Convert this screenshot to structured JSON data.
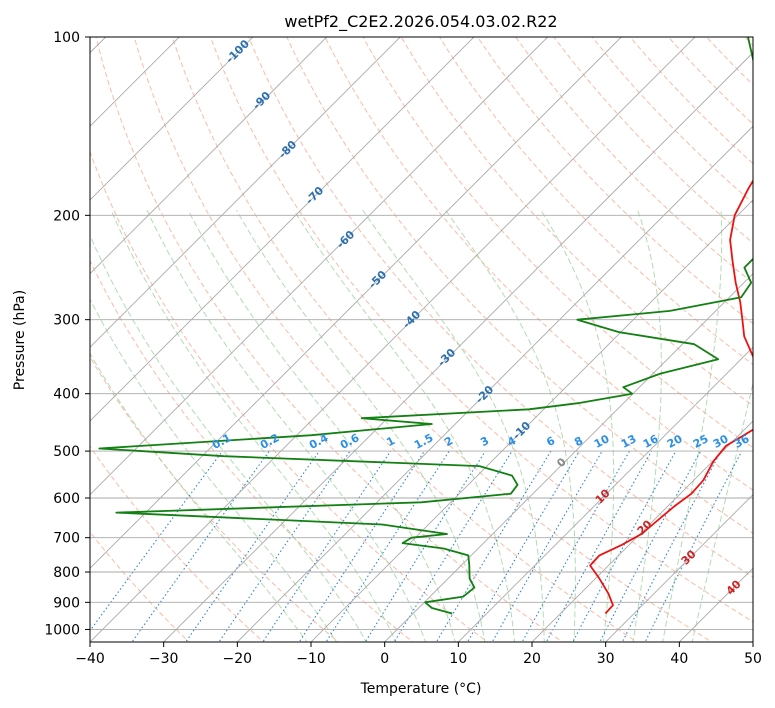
{
  "chart_data": {
    "type": "line",
    "title": "wetPf2_C2E2.2026.054.03.02.R22",
    "xlabel": "Temperature (°C)",
    "ylabel": "Pressure (hPa)",
    "xlim": [
      -40,
      50
    ],
    "ylim": [
      1050,
      100
    ],
    "y_scale": "log",
    "grid": true,
    "x_ticks": [
      -40,
      -30,
      -20,
      -10,
      0,
      10,
      20,
      30,
      40,
      50
    ],
    "x_tick_labels": [
      "−40",
      "−30",
      "−20",
      "−10",
      "0",
      "10",
      "20",
      "30",
      "40",
      "50"
    ],
    "y_ticks": [
      100,
      200,
      300,
      400,
      500,
      600,
      700,
      800,
      900,
      1000
    ],
    "y_tick_labels": [
      "100",
      "200",
      "300",
      "400",
      "500",
      "600",
      "700",
      "800",
      "900",
      "1000"
    ],
    "colors": {
      "temperature": "#ee1111",
      "dewpoint": "#128012",
      "isotherm": "#aaaaaa",
      "dry_adiabat": "#f5a58a",
      "moist_adiabat": "#9fd39f",
      "mixing_ratio": "#2f86d6",
      "isotherm_label": "#2a6fb0",
      "mixing_label": "#2b8fe6",
      "moist_label": "#cc2222"
    },
    "series": [
      {
        "key": "temperature",
        "pressure": [
          940,
          910,
          870,
          820,
          780,
          750,
          720,
          690,
          660,
          620,
          590,
          560,
          520,
          490,
          470,
          440,
          420,
          400,
          380,
          350,
          320,
          300,
          280,
          260,
          240,
          220,
          200,
          180,
          165,
          150,
          140,
          130,
          120,
          115,
          110,
          105,
          100
        ],
        "temp": [
          26.1,
          26.0,
          23.8,
          20.5,
          17.5,
          17.4,
          19.0,
          20.2,
          20.5,
          20.9,
          21.5,
          21.3,
          20.1,
          19.7,
          20.7,
          22.2,
          22.0,
          20.1,
          17.0,
          11.8,
          7.3,
          4.8,
          2.1,
          -1.1,
          -4.3,
          -7.7,
          -10.4,
          -12.2,
          -13.4,
          -13.6,
          -14.6,
          -16.2,
          -17.3,
          -17.3,
          -17.0,
          -16.5,
          -16.0
        ]
      },
      {
        "key": "dewpoint",
        "pressure": [
          940,
          920,
          900,
          880,
          850,
          820,
          780,
          750,
          730,
          715,
          700,
          690,
          665,
          635,
          610,
          590,
          570,
          550,
          530,
          510,
          495,
          470,
          450,
          440,
          425,
          415,
          400,
          390,
          370,
          350,
          330,
          315,
          300,
          290,
          275,
          260,
          245,
          230,
          220,
          210,
          200,
          180,
          160,
          140,
          120,
          100
        ],
        "temp": [
          5.3,
          1.8,
          0.1,
          4.5,
          4.8,
          2.9,
          1.1,
          -0.4,
          -4.7,
          -11.0,
          -10.5,
          -6.2,
          -16.3,
          -54.0,
          -14.0,
          -3.0,
          -3.3,
          -5.3,
          -11.0,
          -47.0,
          -65.0,
          -38.0,
          -23.2,
          -33.5,
          -12.0,
          -6.2,
          -0.1,
          -2.2,
          1.0,
          6.9,
          1.6,
          -10.2,
          -17.6,
          -6.2,
          1.6,
          1.0,
          -2.0,
          -2.0,
          -2.8,
          -3.0,
          -4.0,
          -6.5,
          -11.5,
          -17.2,
          -25.0,
          -32.8
        ]
      }
    ]
  },
  "isotherm_labels": [
    "-100",
    "-90",
    "-80",
    "-70",
    "-60",
    "-50",
    "-40",
    "-30",
    "-20",
    "-10",
    "0"
  ],
  "isotherm_values": [
    -100,
    -90,
    -80,
    -70,
    -60,
    -50,
    -40,
    -30,
    -20,
    -10,
    0
  ],
  "mixing_ratio_labels": [
    "0.1",
    "0.2",
    "0.4",
    "0.6",
    "1",
    "1.5",
    "2",
    "3",
    "4",
    "6",
    "8",
    "10",
    "13",
    "16",
    "20",
    "25",
    "30",
    "36"
  ],
  "mixing_ratio_values": [
    0.1,
    0.2,
    0.4,
    0.6,
    1,
    1.5,
    2,
    3,
    4,
    6,
    8,
    10,
    13,
    16,
    20,
    25,
    30,
    36
  ],
  "moist_adiabat_labels": [
    "10",
    "20",
    "30",
    "40"
  ],
  "moist_adiabat_values": [
    10,
    20,
    30,
    40
  ]
}
